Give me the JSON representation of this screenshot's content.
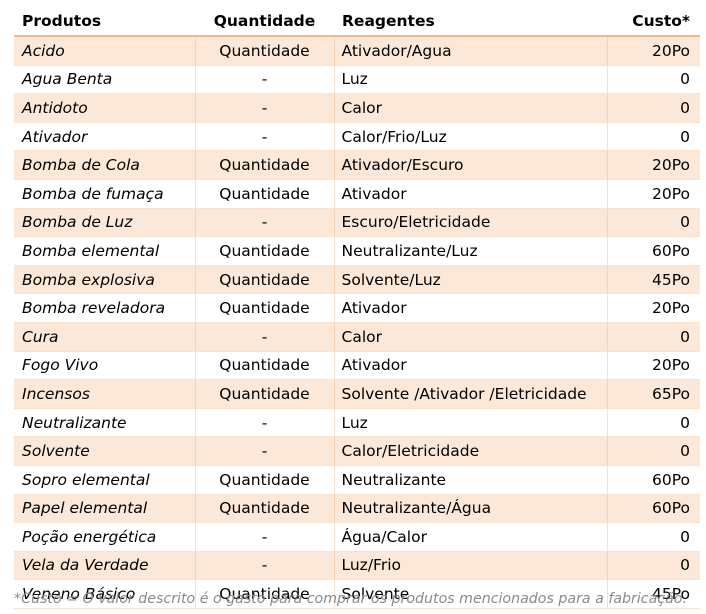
{
  "table": {
    "headers": {
      "product": "Produtos",
      "quantity": "Quantidade",
      "reagents": "Reagentes",
      "cost": "Custo*"
    },
    "rows": [
      {
        "product": "Acido",
        "quantity": "Quantidade",
        "reagents": " Ativador/Agua",
        "cost": "20Po"
      },
      {
        "product": "Agua Benta",
        "quantity": "-",
        "reagents": "Luz",
        "cost": "0"
      },
      {
        "product": "Antidoto",
        "quantity": "-",
        "reagents": "Calor",
        "cost": "0"
      },
      {
        "product": "Ativador",
        "quantity": "-",
        "reagents": "Calor/Frio/Luz",
        "cost": "0"
      },
      {
        "product": "Bomba de Cola",
        "quantity": "Quantidade",
        "reagents": "Ativador/Escuro",
        "cost": "20Po"
      },
      {
        "product": "Bomba de fumaça",
        "quantity": "Quantidade",
        "reagents": "Ativador",
        "cost": "20Po"
      },
      {
        "product": "Bomba de Luz",
        "quantity": "-",
        "reagents": "Escuro/Eletricidade",
        "cost": "0"
      },
      {
        "product": "Bomba elemental",
        "quantity": "Quantidade",
        "reagents": "Neutralizante/Luz",
        "cost": "60Po"
      },
      {
        "product": "Bomba explosiva",
        "quantity": "Quantidade",
        "reagents": "Solvente/Luz",
        "cost": "45Po"
      },
      {
        "product": "Bomba reveladora",
        "quantity": "Quantidade",
        "reagents": "Ativador",
        "cost": "20Po"
      },
      {
        "product": "Cura",
        "quantity": "-",
        "reagents": "Calor",
        "cost": "0"
      },
      {
        "product": "Fogo Vivo",
        "quantity": "Quantidade",
        "reagents": "Ativador",
        "cost": "20Po"
      },
      {
        "product": "Incensos",
        "quantity": "Quantidade",
        "reagents": "Solvente /Ativador /Eletricidade",
        "cost": "65Po"
      },
      {
        "product": "Neutralizante",
        "quantity": "-",
        "reagents": "Luz",
        "cost": "0"
      },
      {
        "product": "Solvente",
        "quantity": "-",
        "reagents": "Calor/Eletricidade",
        "cost": "0"
      },
      {
        "product": "Sopro elemental",
        "quantity": "Quantidade",
        "reagents": "Neutralizante",
        "cost": "60Po"
      },
      {
        "product": "Papel elemental",
        "quantity": "Quantidade",
        "reagents": "Neutralizante/Água",
        "cost": "60Po"
      },
      {
        "product": "Poção energética",
        "quantity": "-",
        "reagents": "Água/Calor",
        "cost": "0"
      },
      {
        "product": "Vela da Verdade",
        "quantity": "-",
        "reagents": "Luz/Frio",
        "cost": "0"
      },
      {
        "product": "Veneno Básico",
        "quantity": "Quantidade",
        "reagents": "Solvente",
        "cost": "45Po"
      }
    ]
  },
  "footnote": "*Custo = O valor descrito é o gasto para comprar os produtos mencionados para a fabricação.",
  "colors": {
    "band": "#fce8d8",
    "header_rule": "#f2b88a",
    "footnote_text": "#8a8a8a"
  }
}
